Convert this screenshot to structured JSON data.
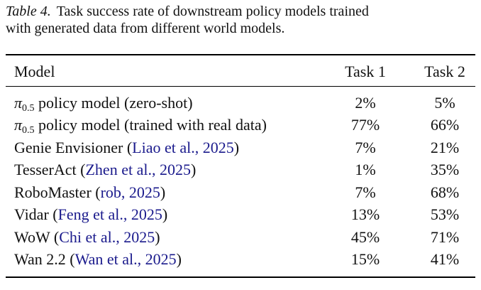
{
  "caption": {
    "label": "Table 4.",
    "line1": "Task success rate of downstream policy models trained",
    "line2": "with generated data from different world models."
  },
  "table": {
    "columns": [
      "Model",
      "Task 1",
      "Task 2"
    ],
    "rows": [
      {
        "pi": "π",
        "sub": "0.5",
        "rest": " policy model (zero-shot)",
        "task1": "2%",
        "task2": "5%"
      },
      {
        "pi": "π",
        "sub": "0.5",
        "rest": " policy model (trained with real data)",
        "task1": "77%",
        "task2": "66%"
      },
      {
        "pre": "Genie Envisioner (",
        "cite": "Liao et al., 2025",
        "post": ")",
        "task1": "7%",
        "task2": "21%"
      },
      {
        "pre": "TesserAct (",
        "cite": "Zhen et al., 2025",
        "post": ")",
        "task1": "1%",
        "task2": "35%"
      },
      {
        "pre": "RoboMaster (",
        "cite": "rob, 2025",
        "post": ")",
        "task1": "7%",
        "task2": "68%"
      },
      {
        "pre": "Vidar (",
        "cite": "Feng et al., 2025",
        "post": ")",
        "task1": "13%",
        "task2": "53%"
      },
      {
        "pre": "WoW (",
        "cite": "Chi et al., 2025",
        "post": ")",
        "task1": "45%",
        "task2": "71%"
      },
      {
        "pre": "Wan 2.2 (",
        "cite": "Wan et al., 2025",
        "post": ")",
        "task1": "15%",
        "task2": "41%"
      }
    ]
  },
  "colors": {
    "text": "#111111",
    "citation": "#1a1a8c",
    "rule": "#000000"
  }
}
